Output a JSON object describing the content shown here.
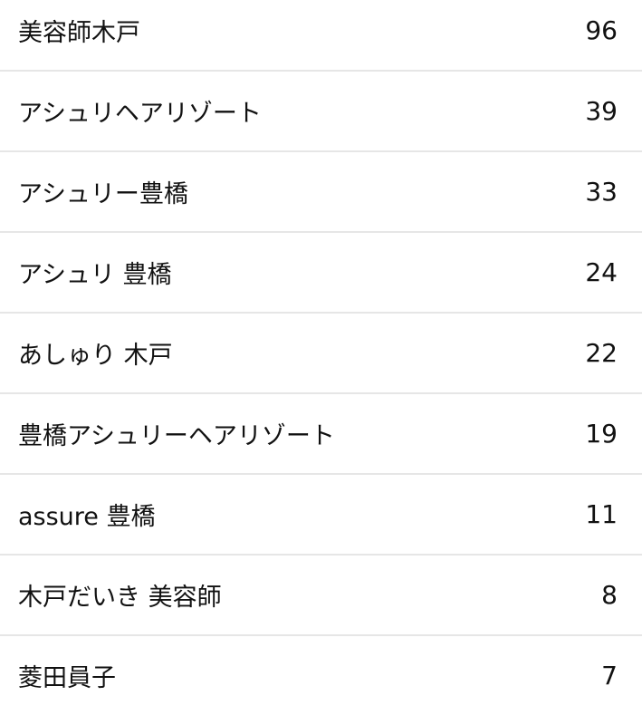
{
  "items": [
    {
      "label": "美容師木戸",
      "count": "96"
    },
    {
      "label": "アシュリヘアリゾート",
      "count": "39"
    },
    {
      "label": "アシュリー豊橋",
      "count": "33"
    },
    {
      "label": "アシュリ 豊橋",
      "count": "24"
    },
    {
      "label": "あしゅり 木戸",
      "count": "22"
    },
    {
      "label": "豊橋アシュリーヘアリゾート",
      "count": "19"
    },
    {
      "label": "assure 豊橋",
      "count": "11"
    },
    {
      "label": "木戸だいき 美容師",
      "count": "8"
    },
    {
      "label": "菱田員子",
      "count": "7"
    }
  ]
}
